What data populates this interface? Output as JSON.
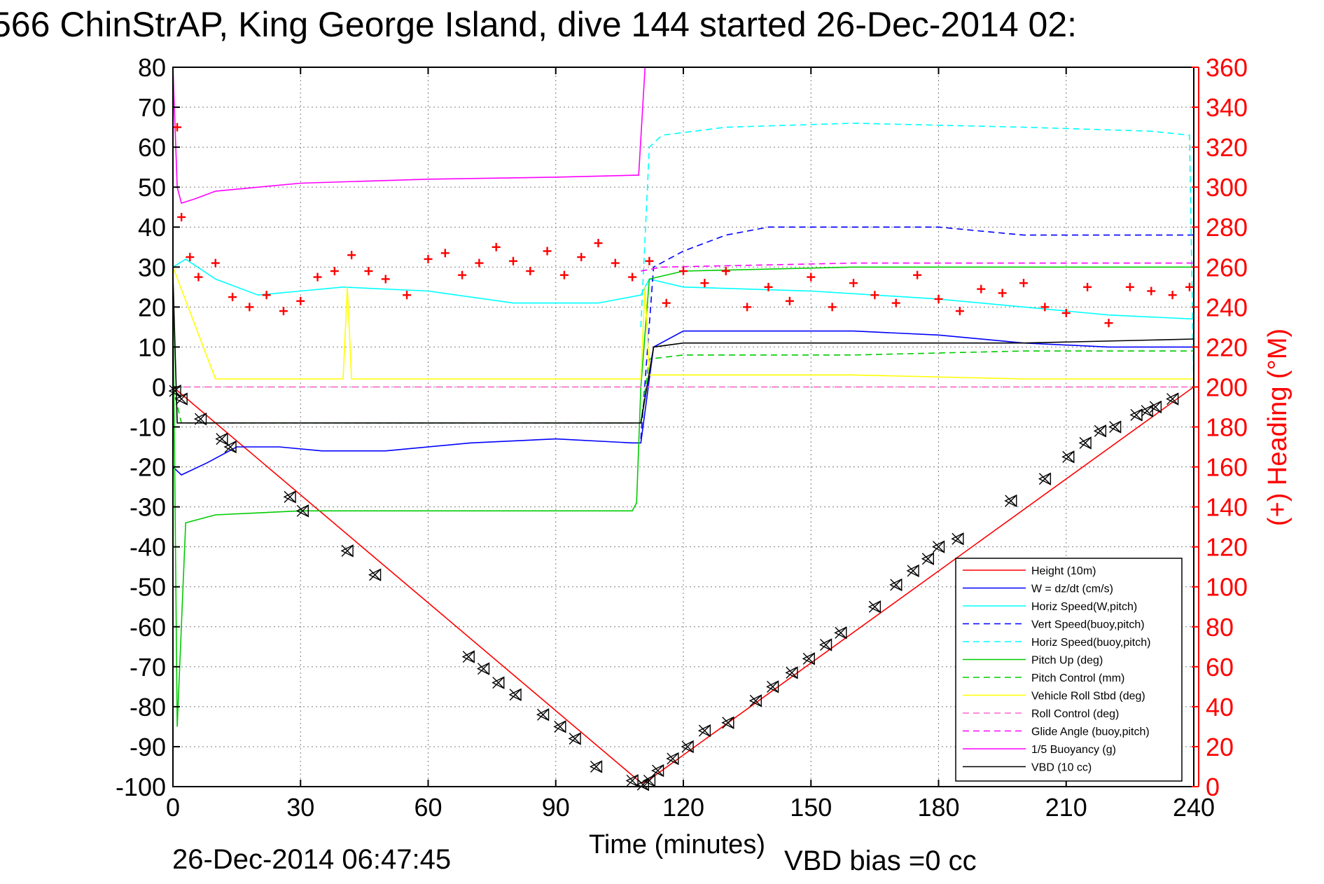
{
  "colors": {
    "height": "#ff0000",
    "w": "#0000ff",
    "horiz_w": "#00ffff",
    "vert_buoy": "#0000ff",
    "horiz_buoy": "#00ffff",
    "pitch_up": "#00cc00",
    "pitch_ctrl": "#00cc00",
    "roll_stbd": "#ffff00",
    "roll_ctrl": "#ff66cc",
    "glide": "#ff00ff",
    "buoyancy": "#ff00ff",
    "vbd": "#000000",
    "heading": "#ff0000",
    "right_axis": "#ff0000",
    "grid": "#7f7f7f"
  },
  "chart_data": {
    "type": "line",
    "title": "566 ChinStrAP, King George Island, dive 144 started 26-Dec-2014 02:",
    "xlabel": "Time (minutes)",
    "ylabel": "",
    "y2label": "(+) Heading (°M)",
    "xlim": [
      0,
      240
    ],
    "ylim": [
      -100,
      80
    ],
    "y2lim": [
      0,
      360
    ],
    "xticks": [
      "0",
      "30",
      "60",
      "90",
      "120",
      "150",
      "180",
      "210",
      "240"
    ],
    "yticks": [
      "80",
      "70",
      "60",
      "50",
      "40",
      "30",
      "20",
      "10",
      "0",
      "-10",
      "-20",
      "-30",
      "-40",
      "-50",
      "-60",
      "-70",
      "-80",
      "-90",
      "-100"
    ],
    "y2ticks": [
      "360",
      "340",
      "320",
      "300",
      "280",
      "260",
      "240",
      "220",
      "200",
      "180",
      "160",
      "140",
      "120",
      "100",
      "80",
      "60",
      "40",
      "20",
      "0"
    ],
    "grid": true,
    "legend_position": "bottom-right",
    "legend": [
      "Height (10m)",
      "W = dz/dt (cm/s)",
      "Horiz Speed(W,pitch)",
      "Vert Speed(buoy,pitch)",
      "Horiz Speed(buoy,pitch)",
      "Pitch Up (deg)",
      "Pitch Control (mm)",
      "Vehicle Roll Stbd (deg)",
      "Roll Control (deg)",
      "Glide Angle (buoy,pitch)",
      "1/5 Buoyancy (g)",
      "VBD (10 cc)"
    ],
    "series": [
      {
        "name": "Height (10m)",
        "style": "solid",
        "color": "#ff0000",
        "x": [
          0,
          110,
          111,
          240
        ],
        "y": [
          0,
          -99,
          -99,
          0
        ]
      },
      {
        "name": "W = dz/dt (cm/s)",
        "style": "solid",
        "color": "#0000ff",
        "x": [
          0,
          2,
          8,
          15,
          25,
          35,
          50,
          70,
          90,
          108,
          110,
          113,
          120,
          140,
          160,
          180,
          200,
          220,
          240
        ],
        "y": [
          -20,
          -22,
          -19,
          -15,
          -15,
          -16,
          -16,
          -14,
          -13,
          -14,
          -14,
          10,
          14,
          14,
          14,
          13,
          11,
          10,
          10
        ]
      },
      {
        "name": "Horiz Speed(W,pitch)",
        "style": "solid",
        "color": "#00ffff",
        "x": [
          0,
          3,
          10,
          20,
          30,
          40,
          60,
          80,
          100,
          110,
          112,
          120,
          150,
          180,
          200,
          220,
          240
        ],
        "y": [
          30,
          32,
          27,
          23,
          24,
          25,
          24,
          21,
          21,
          23,
          27,
          25,
          24,
          22,
          20,
          18,
          17
        ]
      },
      {
        "name": "Vert Speed(buoy,pitch)",
        "style": "dashed",
        "color": "#0000ff",
        "x": [
          110,
          113,
          120,
          130,
          140,
          160,
          180,
          200,
          220,
          240
        ],
        "y": [
          -13,
          30,
          34,
          38,
          40,
          40,
          40,
          38,
          38,
          38
        ]
      },
      {
        "name": "Horiz Speed(buoy,pitch)",
        "style": "dashed",
        "color": "#00ffff",
        "x": [
          110,
          112,
          115,
          130,
          160,
          200,
          230,
          239,
          240
        ],
        "y": [
          15,
          60,
          63,
          65,
          66,
          65,
          64,
          63,
          0
        ]
      },
      {
        "name": "Pitch Up (deg)",
        "style": "solid",
        "color": "#00cc00",
        "x": [
          0,
          1,
          3,
          10,
          30,
          50,
          80,
          108,
          109,
          110,
          112,
          120,
          160,
          200,
          240
        ],
        "y": [
          25,
          -85,
          -34,
          -32,
          -31,
          -31,
          -31,
          -31,
          -29,
          0,
          27,
          29,
          30,
          30,
          30
        ]
      },
      {
        "name": "Pitch Control (mm)",
        "style": "dashed",
        "color": "#00cc00",
        "x": [
          0,
          2,
          110,
          112,
          120,
          160,
          200,
          240
        ],
        "y": [
          0,
          -9,
          -9,
          7,
          8,
          8,
          9,
          9
        ]
      },
      {
        "name": "Vehicle Roll Stbd (deg)",
        "style": "solid",
        "color": "#ffff00",
        "x": [
          0,
          10,
          20,
          40,
          41,
          42,
          60,
          90,
          110,
          111,
          112,
          130,
          160,
          200,
          240
        ],
        "y": [
          30,
          2,
          2,
          2,
          25,
          2,
          2,
          2,
          2,
          25,
          3,
          3,
          3,
          2,
          2
        ]
      },
      {
        "name": "Roll Control (deg)",
        "style": "dashed",
        "color": "#ff66cc",
        "x": [
          0,
          240
        ],
        "y": [
          0,
          0
        ]
      },
      {
        "name": "Glide Angle (buoy,pitch)",
        "style": "dashed",
        "color": "#ff00ff",
        "x": [
          110,
          115,
          160,
          200,
          240
        ],
        "y": [
          29,
          30,
          31,
          31,
          31
        ]
      },
      {
        "name": "1/5 Buoyancy (g)",
        "style": "solid",
        "color": "#ff00ff",
        "x": [
          0,
          1,
          2,
          5,
          10,
          30,
          60,
          90,
          109,
          109.5,
          111
        ],
        "y": [
          80,
          50,
          46,
          47,
          49,
          51,
          52,
          52.5,
          53,
          53,
          80
        ]
      },
      {
        "name": "VBD (10 cc)",
        "style": "solid",
        "color": "#000000",
        "x": [
          0,
          1,
          110,
          113,
          120,
          160,
          200,
          240
        ],
        "y": [
          28,
          -9,
          -9,
          10,
          11,
          11,
          11,
          12
        ]
      }
    ],
    "heading_points": {
      "name": "(+) Heading",
      "axis": "right",
      "color": "#ff0000",
      "marker": "+",
      "x": [
        1,
        2,
        4,
        6,
        10,
        14,
        18,
        22,
        26,
        30,
        34,
        38,
        42,
        46,
        50,
        55,
        60,
        64,
        68,
        72,
        76,
        80,
        84,
        88,
        92,
        96,
        100,
        104,
        108,
        112,
        116,
        120,
        125,
        130,
        135,
        140,
        145,
        150,
        155,
        160,
        165,
        170,
        175,
        180,
        185,
        190,
        195,
        200,
        205,
        210,
        215,
        220,
        225,
        230,
        235,
        239
      ],
      "y": [
        330,
        285,
        265,
        255,
        262,
        245,
        240,
        246,
        238,
        243,
        255,
        258,
        266,
        258,
        254,
        246,
        264,
        267,
        256,
        262,
        270,
        263,
        258,
        268,
        256,
        265,
        272,
        262,
        255,
        263,
        242,
        258,
        252,
        258,
        240,
        250,
        243,
        255,
        240,
        252,
        246,
        242,
        256,
        244,
        238,
        249,
        247,
        252,
        240,
        237,
        250,
        232,
        250,
        248,
        246,
        250
      ]
    },
    "marker_points": {
      "name": "Height samples",
      "marker": "triangle-x",
      "color": "#000000",
      "x": [
        0.5,
        2,
        6.5,
        11.5,
        13.5,
        27.5,
        30.5,
        41,
        47.5,
        69.5,
        73,
        76.5,
        80.5,
        87,
        91,
        94.5,
        99.5,
        108,
        110.5,
        112,
        114,
        117.5,
        121,
        125,
        130.5,
        137,
        141,
        145.5,
        149.5,
        153.5,
        157,
        165,
        170,
        174,
        177.5,
        180,
        184.5,
        197,
        205,
        210.5,
        214.5,
        218,
        221.5,
        226.5,
        229,
        231,
        235
      ],
      "y": [
        -1,
        -3,
        -8,
        -13,
        -15,
        -27.5,
        -31,
        -41,
        -47,
        -67.5,
        -70.5,
        -74,
        -77,
        -82,
        -85,
        -88,
        -95,
        -98.5,
        -99.5,
        -98.5,
        -96,
        -93,
        -90,
        -86,
        -84,
        -78.5,
        -75,
        -71.5,
        -68,
        -64.5,
        -61.5,
        -55,
        -49.5,
        -46,
        -43,
        -40,
        -38,
        -28.5,
        -23,
        -17.5,
        -14,
        -11,
        -10,
        -7,
        -6,
        -5,
        -3
      ]
    }
  },
  "footer": {
    "timestamp": "26-Dec-2014 06:47:45",
    "vbd_bias": "VBD bias =0 cc"
  }
}
